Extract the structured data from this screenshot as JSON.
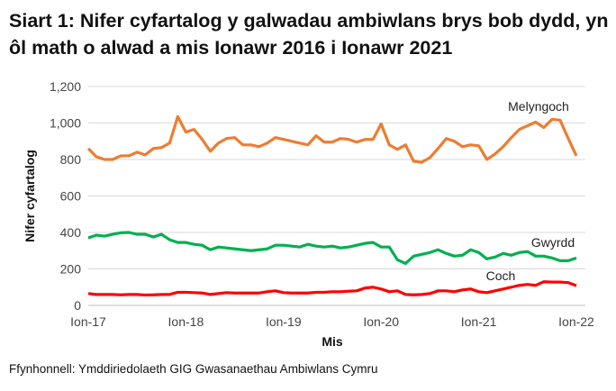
{
  "chart_data": {
    "type": "line",
    "title": "Siart 1: Nifer cyfartalog y galwadau ambiwlans brys bob dydd, yn ôl math o alwad a mis Ionawr 2016 i Ionawr 2021",
    "xlabel": "Mis",
    "ylabel": "Nifer cyfartalog",
    "ylim": [
      0,
      1200
    ],
    "yticks": [
      "0",
      "200",
      "400",
      "600",
      "800",
      "1,000",
      "1,200"
    ],
    "xticks": [
      "Ion-17",
      "Ion-18",
      "Ion-19",
      "Ion-20",
      "Ion-21",
      "Ion-22"
    ],
    "x_range": [
      "Ion-17",
      "Ion-22"
    ],
    "grid": "horizontal",
    "series": [
      {
        "name": "Melyngoch",
        "color": "#ED7D31",
        "values": [
          860,
          815,
          800,
          800,
          820,
          820,
          840,
          825,
          860,
          865,
          890,
          1035,
          950,
          965,
          910,
          845,
          890,
          915,
          920,
          880,
          880,
          870,
          890,
          920,
          910,
          900,
          890,
          880,
          930,
          895,
          895,
          915,
          910,
          895,
          910,
          910,
          995,
          880,
          855,
          880,
          790,
          785,
          810,
          860,
          915,
          900,
          870,
          880,
          875,
          800,
          830,
          870,
          920,
          965,
          985,
          1005,
          975,
          1020,
          1015,
          915,
          820
        ]
      },
      {
        "name": "Gwyrdd",
        "color": "#00B050",
        "values": [
          370,
          385,
          380,
          390,
          398,
          400,
          390,
          390,
          375,
          390,
          360,
          345,
          345,
          335,
          330,
          305,
          320,
          315,
          310,
          305,
          300,
          305,
          310,
          330,
          330,
          325,
          320,
          335,
          325,
          320,
          325,
          315,
          320,
          330,
          340,
          345,
          320,
          320,
          250,
          230,
          270,
          280,
          290,
          305,
          285,
          270,
          275,
          305,
          290,
          255,
          265,
          285,
          275,
          290,
          295,
          270,
          270,
          260,
          245,
          245,
          260
        ]
      },
      {
        "name": "Coch",
        "color": "#FF0000",
        "values": [
          65,
          60,
          60,
          60,
          58,
          60,
          60,
          57,
          58,
          60,
          60,
          72,
          72,
          70,
          68,
          60,
          65,
          70,
          68,
          68,
          68,
          68,
          75,
          80,
          70,
          68,
          68,
          68,
          72,
          72,
          75,
          75,
          78,
          80,
          95,
          100,
          90,
          75,
          80,
          60,
          58,
          60,
          65,
          80,
          80,
          75,
          85,
          90,
          75,
          70,
          80,
          90,
          100,
          110,
          115,
          110,
          130,
          128,
          128,
          125,
          108
        ]
      }
    ]
  },
  "source": "Ffynhonnell: Ymddiriedolaeth GIG Gwasanaethau Ambiwlans Cymru"
}
